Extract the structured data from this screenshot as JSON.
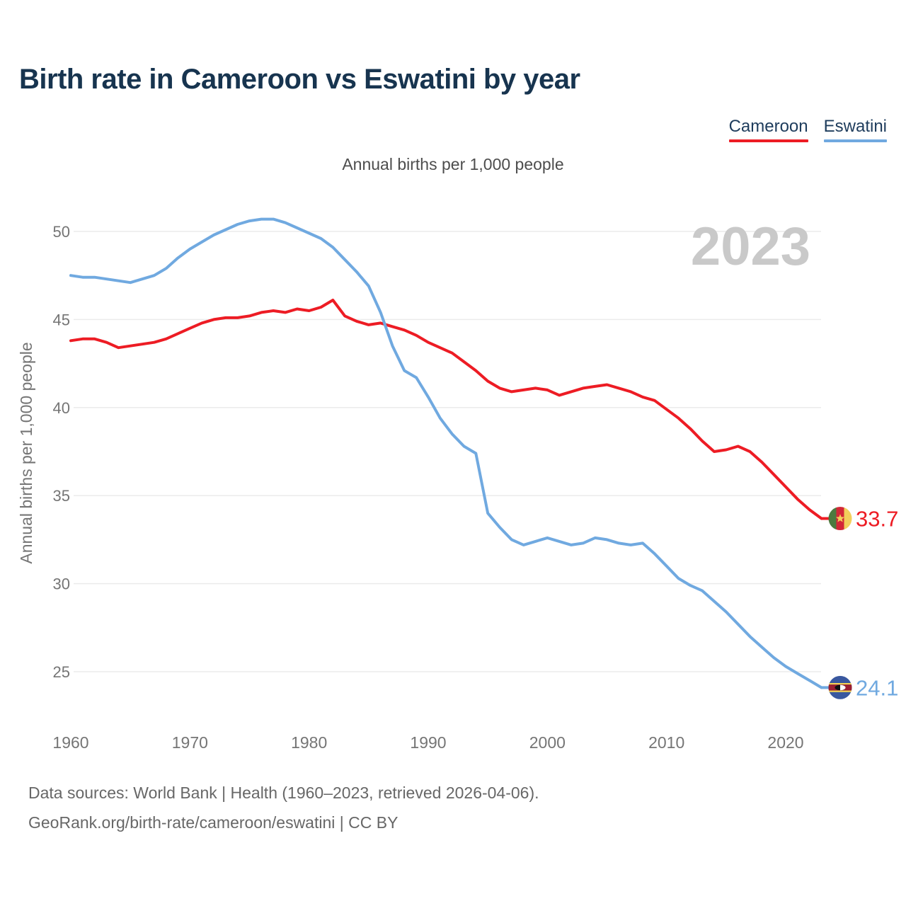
{
  "title": "Birth rate in Cameroon vs Eswatini by year",
  "subtitle": "Annual births per 1,000 people",
  "watermark": "2023",
  "legend": [
    {
      "label": "Cameroon",
      "color": "#ed1c24"
    },
    {
      "label": "Eswatini",
      "color": "#70a9e0"
    }
  ],
  "footer": {
    "line1": "Data sources: World Bank | Health (1960–2023, retrieved 2026-04-06).",
    "line2": "GeoRank.org/birth-rate/cameroon/eswatini | CC BY"
  },
  "chart_data": {
    "type": "line",
    "title": "Birth rate in Cameroon vs Eswatini by year",
    "ylabel": "Annual births per 1,000 people",
    "xlabel": "",
    "grid": true,
    "legend_position": "top-right",
    "ylim": [
      23,
      51.5
    ],
    "xlim": [
      1960,
      2023
    ],
    "yticks": [
      25,
      30,
      35,
      40,
      45,
      50
    ],
    "xticks": [
      1960,
      1970,
      1980,
      1990,
      2000,
      2010,
      2020
    ],
    "x": [
      1960,
      1961,
      1962,
      1963,
      1964,
      1965,
      1966,
      1967,
      1968,
      1969,
      1970,
      1971,
      1972,
      1973,
      1974,
      1975,
      1976,
      1977,
      1978,
      1979,
      1980,
      1981,
      1982,
      1983,
      1984,
      1985,
      1986,
      1987,
      1988,
      1989,
      1990,
      1991,
      1992,
      1993,
      1994,
      1995,
      1996,
      1997,
      1998,
      1999,
      2000,
      2001,
      2002,
      2003,
      2004,
      2005,
      2006,
      2007,
      2008,
      2009,
      2010,
      2011,
      2012,
      2013,
      2014,
      2015,
      2016,
      2017,
      2018,
      2019,
      2020,
      2021,
      2022,
      2023
    ],
    "series": [
      {
        "name": "Cameroon",
        "color": "#ed1c24",
        "end_label": "33.7",
        "flag": "cameroon",
        "values": [
          43.8,
          43.9,
          43.9,
          43.7,
          43.4,
          43.5,
          43.6,
          43.7,
          43.9,
          44.2,
          44.5,
          44.8,
          45.0,
          45.1,
          45.1,
          45.2,
          45.4,
          45.5,
          45.4,
          45.6,
          45.5,
          45.7,
          46.1,
          45.2,
          44.9,
          44.7,
          44.8,
          44.6,
          44.4,
          44.1,
          43.7,
          43.4,
          43.1,
          42.6,
          42.1,
          41.5,
          41.1,
          40.9,
          41.0,
          41.1,
          41.0,
          40.7,
          40.9,
          41.1,
          41.2,
          41.3,
          41.1,
          40.9,
          40.6,
          40.4,
          39.9,
          39.4,
          38.8,
          38.1,
          37.5,
          37.6,
          37.8,
          37.5,
          36.9,
          36.2,
          35.5,
          34.8,
          34.2,
          33.7
        ]
      },
      {
        "name": "Eswatini",
        "color": "#70a9e0",
        "end_label": "24.1",
        "flag": "eswatini",
        "values": [
          47.5,
          47.4,
          47.4,
          47.3,
          47.2,
          47.1,
          47.3,
          47.5,
          47.9,
          48.5,
          49.0,
          49.4,
          49.8,
          50.1,
          50.4,
          50.6,
          50.7,
          50.7,
          50.5,
          50.2,
          49.9,
          49.6,
          49.1,
          48.4,
          47.7,
          46.9,
          45.4,
          43.5,
          42.1,
          41.7,
          40.6,
          39.4,
          38.5,
          37.8,
          37.4,
          34.0,
          33.2,
          32.5,
          32.2,
          32.4,
          32.6,
          32.4,
          32.2,
          32.3,
          32.6,
          32.5,
          32.3,
          32.2,
          32.3,
          31.7,
          31.0,
          30.3,
          29.9,
          29.6,
          29.0,
          28.4,
          27.7,
          27.0,
          26.4,
          25.8,
          25.3,
          24.9,
          24.5,
          24.1
        ]
      }
    ]
  }
}
